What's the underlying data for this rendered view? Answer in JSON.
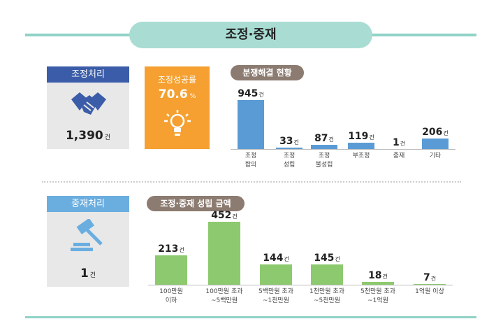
{
  "title": "조정·중재",
  "mediation_card": {
    "label": "조정처리",
    "count": {
      "value": 1390,
      "label": "1,390"
    },
    "unit": "건"
  },
  "success_card": {
    "label": "조정성공률",
    "value": 70.6,
    "unit": "%"
  },
  "arbitration_card": {
    "label": "중재처리",
    "count": 1,
    "unit": "건"
  },
  "chart_data": [
    {
      "type": "bar",
      "title": "분쟁해결 현황",
      "unit": "건",
      "color": "#5b9bd5",
      "categories": [
        "조정\n합의",
        "조정\n성립",
        "조정\n불성립",
        "부조정",
        "중재",
        "기타"
      ],
      "values": [
        945,
        33,
        87,
        119,
        1,
        206
      ]
    },
    {
      "type": "bar",
      "title": "조정·중재 성립 금액",
      "unit": "건",
      "color": "#8cc96f",
      "categories": [
        "100만원\n이하",
        "100만원 초과\n~5백만원",
        "5백만원 초과\n~1천만원",
        "1천만원 초과\n~5천만원",
        "5천만원 초과\n~1억원",
        "1억원 이상"
      ],
      "values": [
        213,
        452,
        144,
        145,
        18,
        7
      ]
    }
  ]
}
